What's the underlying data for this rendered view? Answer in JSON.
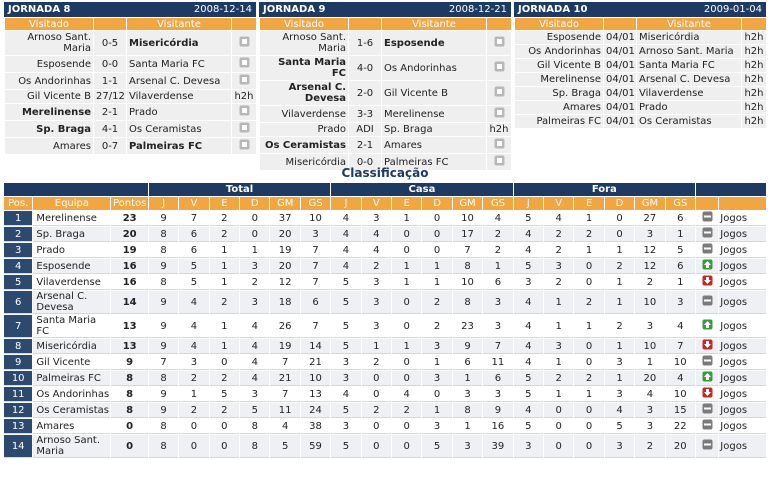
{
  "fixtures_header": {
    "home": "Visitado",
    "away": "Visitante"
  },
  "rounds": [
    {
      "title": "JORNADA 8",
      "date": "2008-12-14",
      "matches": [
        {
          "home": "Arnoso Sant. Maria",
          "result": "0-5",
          "away": "Misericórdia",
          "winner": "away"
        },
        {
          "home": "Esposende",
          "result": "0-0",
          "away": "Santa Maria FC"
        },
        {
          "home": "Os Andorinhas",
          "result": "1-1",
          "away": "Arsenal C. Devesa"
        },
        {
          "home": "Gil Vicente B",
          "result": "27/12",
          "away": "Vilaverdense",
          "link": "h2h"
        },
        {
          "home": "Merelinense",
          "result": "2-1",
          "away": "Prado",
          "winner": "home"
        },
        {
          "home": "Sp. Braga",
          "result": "4-1",
          "away": "Os Ceramistas",
          "winner": "home"
        },
        {
          "home": "Amares",
          "result": "0-7",
          "away": "Palmeiras FC",
          "winner": "away"
        }
      ]
    },
    {
      "title": "JORNADA 9",
      "date": "2008-12-21",
      "matches": [
        {
          "home": "Arnoso Sant. Maria",
          "result": "1-6",
          "away": "Esposende",
          "winner": "away"
        },
        {
          "home": "Santa Maria FC",
          "result": "4-0",
          "away": "Os Andorinhas",
          "winner": "home"
        },
        {
          "home": "Arsenal C. Devesa",
          "result": "2-0",
          "away": "Gil Vicente B",
          "winner": "home"
        },
        {
          "home": "Vilaverdense",
          "result": "3-3",
          "away": "Merelinense"
        },
        {
          "home": "Prado",
          "result": "ADI",
          "away": "Sp. Braga",
          "link": "h2h"
        },
        {
          "home": "Os Ceramistas",
          "result": "2-1",
          "away": "Amares",
          "winner": "home"
        },
        {
          "home": "Misericórdia",
          "result": "0-0",
          "away": "Palmeiras FC"
        }
      ]
    },
    {
      "title": "JORNADA 10",
      "date": "2009-01-04",
      "matches": [
        {
          "home": "Esposende",
          "result": "04/01",
          "away": "Misericórdia",
          "link": "h2h"
        },
        {
          "home": "Os Andorinhas",
          "result": "04/01",
          "away": "Arnoso Sant. Maria",
          "link": "h2h"
        },
        {
          "home": "Gil Vicente B",
          "result": "04/01",
          "away": "Santa Maria FC",
          "link": "h2h"
        },
        {
          "home": "Merelinense",
          "result": "04/01",
          "away": "Arsenal C. Devesa",
          "link": "h2h"
        },
        {
          "home": "Sp. Braga",
          "result": "04/01",
          "away": "Vilaverdense",
          "link": "h2h"
        },
        {
          "home": "Amares",
          "result": "04/01",
          "away": "Prado",
          "link": "h2h"
        },
        {
          "home": "Palmeiras FC",
          "result": "04/01",
          "away": "Os Ceramistas",
          "link": "h2h"
        }
      ]
    }
  ],
  "standings": {
    "title": "Classificação",
    "groups": [
      "Total",
      "Casa",
      "Fora"
    ],
    "columns": [
      "Pos.",
      "Equipa",
      "Pontos"
    ],
    "stat_columns": [
      "J",
      "V",
      "E",
      "D",
      "GM",
      "GS"
    ],
    "rows": [
      {
        "pos": 1,
        "team": "Merelinense",
        "points": 23,
        "total": [
          9,
          7,
          2,
          0,
          37,
          10
        ],
        "home": [
          4,
          3,
          1,
          0,
          10,
          4
        ],
        "away": [
          5,
          4,
          1,
          0,
          27,
          6
        ],
        "trend": "flat",
        "link": "Jogos"
      },
      {
        "pos": 2,
        "team": "Sp. Braga",
        "points": 20,
        "total": [
          8,
          6,
          2,
          0,
          20,
          3
        ],
        "home": [
          4,
          4,
          0,
          0,
          17,
          2
        ],
        "away": [
          4,
          2,
          2,
          0,
          3,
          1
        ],
        "trend": "flat",
        "link": "Jogos"
      },
      {
        "pos": 3,
        "team": "Prado",
        "points": 19,
        "total": [
          8,
          6,
          1,
          1,
          19,
          7
        ],
        "home": [
          4,
          4,
          0,
          0,
          7,
          2
        ],
        "away": [
          4,
          2,
          1,
          1,
          12,
          5
        ],
        "trend": "flat",
        "link": "Jogos"
      },
      {
        "pos": 4,
        "team": "Esposende",
        "points": 16,
        "total": [
          9,
          5,
          1,
          3,
          20,
          7
        ],
        "home": [
          4,
          2,
          1,
          1,
          8,
          1
        ],
        "away": [
          5,
          3,
          0,
          2,
          12,
          6
        ],
        "trend": "up",
        "link": "Jogos"
      },
      {
        "pos": 5,
        "team": "Vilaverdense",
        "points": 16,
        "total": [
          8,
          5,
          1,
          2,
          12,
          7
        ],
        "home": [
          5,
          3,
          1,
          1,
          10,
          6
        ],
        "away": [
          3,
          2,
          0,
          1,
          2,
          1
        ],
        "trend": "down",
        "link": "Jogos"
      },
      {
        "pos": 6,
        "team": "Arsenal C. Devesa",
        "points": 14,
        "total": [
          9,
          4,
          2,
          3,
          18,
          6
        ],
        "home": [
          5,
          3,
          0,
          2,
          8,
          3
        ],
        "away": [
          4,
          1,
          2,
          1,
          10,
          3
        ],
        "trend": "flat",
        "link": "Jogos"
      },
      {
        "pos": 7,
        "team": "Santa Maria FC",
        "points": 13,
        "total": [
          9,
          4,
          1,
          4,
          26,
          7
        ],
        "home": [
          5,
          3,
          0,
          2,
          23,
          3
        ],
        "away": [
          4,
          1,
          1,
          2,
          3,
          4
        ],
        "trend": "up",
        "link": "Jogos"
      },
      {
        "pos": 8,
        "team": "Misericórdia",
        "points": 13,
        "total": [
          9,
          4,
          1,
          4,
          19,
          14
        ],
        "home": [
          5,
          1,
          1,
          3,
          9,
          7
        ],
        "away": [
          4,
          3,
          0,
          1,
          10,
          7
        ],
        "trend": "down",
        "link": "Jogos"
      },
      {
        "pos": 9,
        "team": "Gil Vicente",
        "points": 9,
        "total": [
          7,
          3,
          0,
          4,
          7,
          21
        ],
        "home": [
          3,
          2,
          0,
          1,
          6,
          11
        ],
        "away": [
          4,
          1,
          0,
          3,
          1,
          10
        ],
        "trend": "flat",
        "link": "Jogos"
      },
      {
        "pos": 10,
        "team": "Palmeiras FC",
        "points": 8,
        "total": [
          8,
          2,
          2,
          4,
          21,
          10
        ],
        "home": [
          3,
          0,
          0,
          3,
          1,
          6
        ],
        "away": [
          5,
          2,
          2,
          1,
          20,
          4
        ],
        "trend": "up",
        "link": "Jogos"
      },
      {
        "pos": 11,
        "team": "Os Andorinhas",
        "points": 8,
        "total": [
          9,
          1,
          5,
          3,
          7,
          13
        ],
        "home": [
          4,
          0,
          4,
          0,
          3,
          3
        ],
        "away": [
          5,
          1,
          1,
          3,
          4,
          10
        ],
        "trend": "down",
        "link": "Jogos"
      },
      {
        "pos": 12,
        "team": "Os Ceramistas",
        "points": 8,
        "total": [
          9,
          2,
          2,
          5,
          11,
          24
        ],
        "home": [
          5,
          2,
          2,
          1,
          8,
          9
        ],
        "away": [
          4,
          0,
          0,
          4,
          3,
          15
        ],
        "trend": "flat",
        "link": "Jogos"
      },
      {
        "pos": 13,
        "team": "Amares",
        "points": 0,
        "total": [
          8,
          0,
          0,
          8,
          4,
          38
        ],
        "home": [
          3,
          0,
          0,
          3,
          1,
          16
        ],
        "away": [
          5,
          0,
          0,
          5,
          3,
          22
        ],
        "trend": "flat",
        "link": "Jogos"
      },
      {
        "pos": 14,
        "team": "Arnoso Sant. Maria",
        "points": 0,
        "total": [
          8,
          0,
          0,
          8,
          5,
          59
        ],
        "home": [
          5,
          0,
          0,
          5,
          3,
          39
        ],
        "away": [
          3,
          0,
          0,
          3,
          2,
          20
        ],
        "trend": "flat",
        "link": "Jogos"
      }
    ]
  }
}
